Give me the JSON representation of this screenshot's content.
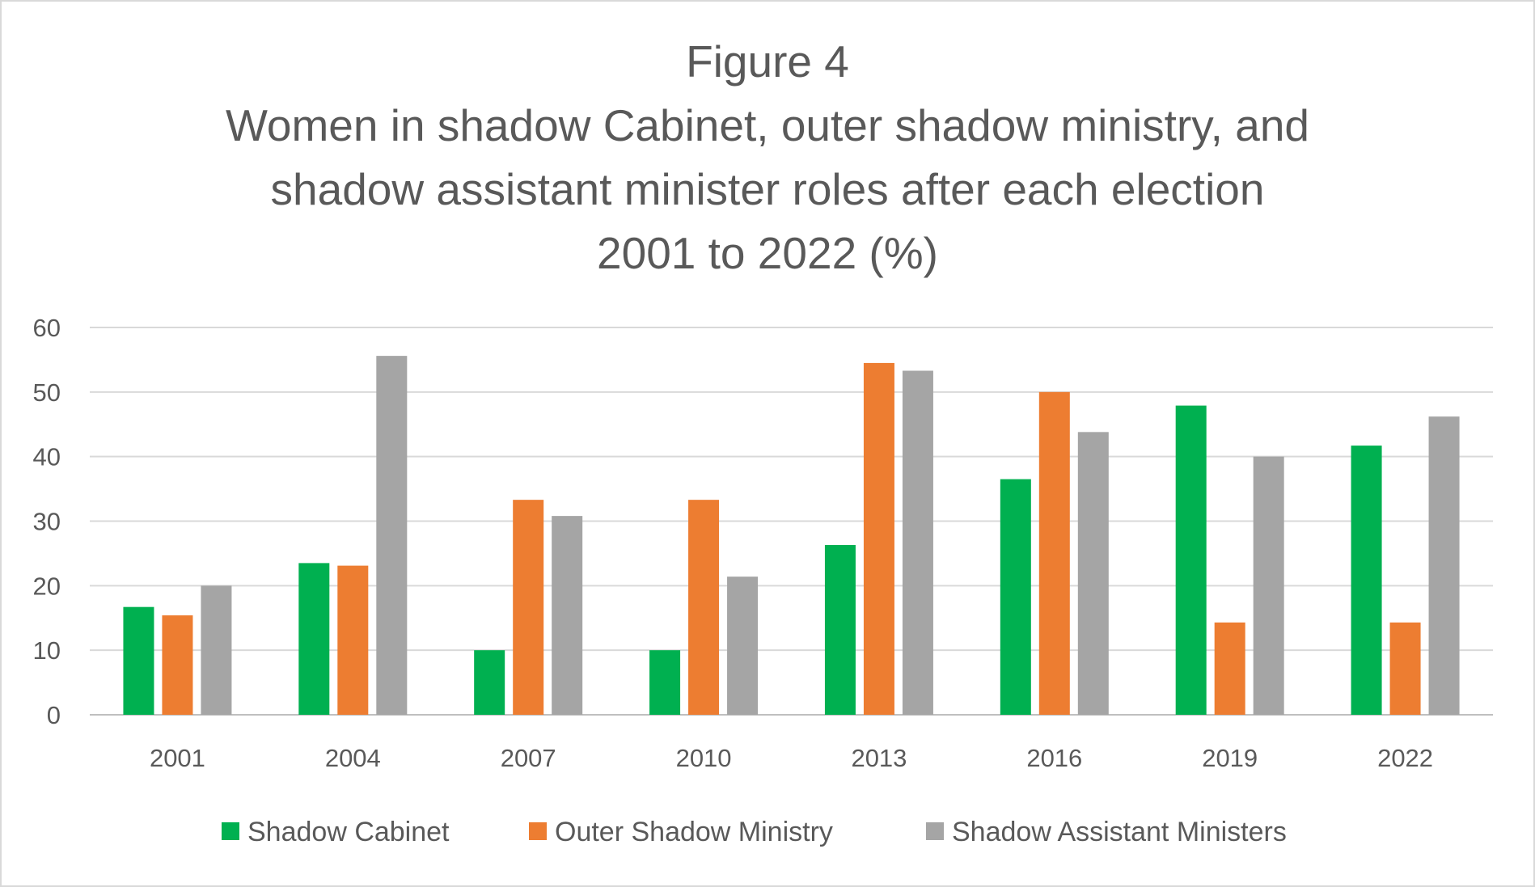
{
  "chart_data": {
    "type": "bar",
    "title": "Figure 4",
    "subtitle_lines": [
      "Women in shadow Cabinet, outer shadow ministry, and",
      "shadow assistant minister roles after each election",
      "2001 to 2022 (%)"
    ],
    "xlabel": "",
    "ylabel": "",
    "ylim": [
      0,
      60
    ],
    "yticks": [
      "0",
      "10",
      "20",
      "30",
      "40",
      "50",
      "60"
    ],
    "categories": [
      "2001",
      "2004",
      "2007",
      "2010",
      "2013",
      "2016",
      "2019",
      "2022"
    ],
    "series": [
      {
        "name": "Shadow Cabinet",
        "color": "#00B050",
        "values": [
          16.7,
          23.5,
          10,
          10,
          26.3,
          36.5,
          47.9,
          41.7
        ]
      },
      {
        "name": "Outer Shadow Ministry",
        "color": "#ED7D31",
        "values": [
          15.4,
          23.1,
          33.3,
          33.3,
          54.5,
          50,
          14.3,
          14.3
        ]
      },
      {
        "name": "Shadow Assistant Ministers",
        "color": "#A5A5A5",
        "values": [
          20,
          55.6,
          30.8,
          21.4,
          53.3,
          43.8,
          40,
          46.2
        ]
      }
    ],
    "grid": true,
    "legend_position": "bottom"
  }
}
